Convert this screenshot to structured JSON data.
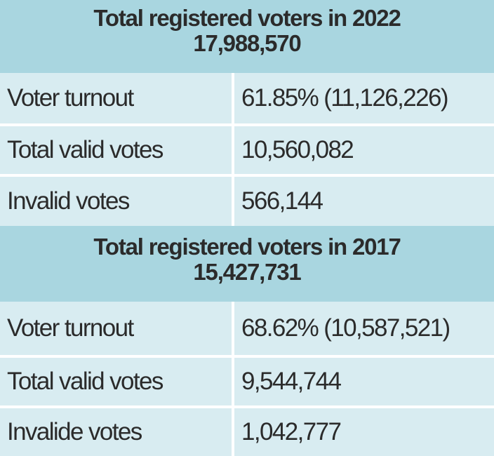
{
  "chart_data": {
    "type": "table",
    "blocks": [
      {
        "header": "Total registered voters in 2022",
        "total": "17,988,570",
        "rows": [
          {
            "label": "Voter turnout",
            "value": "61.85% (11,126,226)"
          },
          {
            "label": "Total valid votes",
            "value": "10,560,082"
          },
          {
            "label": "Invalid votes",
            "value": "566,144"
          }
        ]
      },
      {
        "header": "Total registered voters in 2017",
        "total": "15,427,731",
        "rows": [
          {
            "label": "Voter turnout",
            "value": "68.62% (10,587,521)"
          },
          {
            "label": "Total valid votes",
            "value": "9,544,744"
          },
          {
            "label": "Invalide votes",
            "value": "1,042,777"
          }
        ]
      }
    ]
  },
  "colors": {
    "header_bg": "#a9d6e0",
    "row_bg": "#d8ecf1",
    "divider": "#ffffff",
    "text": "#2b2b2b"
  }
}
